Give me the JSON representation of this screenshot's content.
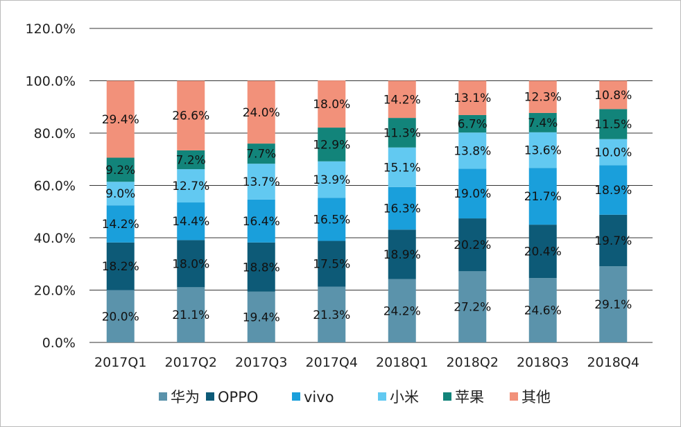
{
  "chart_data": {
    "type": "bar",
    "stacked": true,
    "categories": [
      "2017Q1",
      "2017Q2",
      "2017Q3",
      "2017Q4",
      "2018Q1",
      "2018Q2",
      "2018Q3",
      "2018Q4"
    ],
    "series": [
      {
        "name": "华为",
        "color": "#5b93ab",
        "values": [
          20.0,
          21.1,
          19.4,
          21.3,
          24.2,
          27.2,
          24.6,
          29.1
        ]
      },
      {
        "name": "OPPO",
        "color": "#0d5a77",
        "values": [
          18.2,
          18.0,
          18.8,
          17.5,
          18.9,
          20.2,
          20.4,
          19.7
        ]
      },
      {
        "name": "vivo",
        "color": "#1a9fdb",
        "values": [
          14.2,
          14.4,
          16.4,
          16.5,
          16.3,
          19.0,
          21.7,
          18.9
        ]
      },
      {
        "name": "小米",
        "color": "#62c9f1",
        "values": [
          9.0,
          12.7,
          13.7,
          13.9,
          15.1,
          13.8,
          13.6,
          10.0
        ]
      },
      {
        "name": "苹果",
        "color": "#12847a",
        "values": [
          9.2,
          7.2,
          7.7,
          12.9,
          11.3,
          6.7,
          7.4,
          11.5
        ]
      },
      {
        "name": "其他",
        "color": "#f2917a",
        "values": [
          29.4,
          26.6,
          24.0,
          18.0,
          14.2,
          13.1,
          12.3,
          10.8
        ]
      }
    ],
    "yticks": [
      "0.0%",
      "20.0%",
      "40.0%",
      "60.0%",
      "80.0%",
      "100.0%",
      "120.0%"
    ],
    "ylim": [
      0,
      120
    ],
    "grid": true,
    "legend": "bottom"
  }
}
